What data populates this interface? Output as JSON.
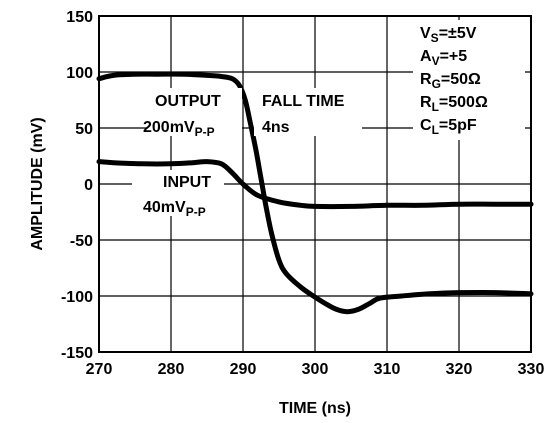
{
  "chart_data": {
    "type": "line",
    "xlabel": "TIME (ns)",
    "ylabel": "AMPLITUDE (mV)",
    "xlim": [
      270,
      330
    ],
    "ylim": [
      -150,
      150
    ],
    "x_ticks": [
      "270",
      "280",
      "290",
      "300",
      "310",
      "320",
      "330"
    ],
    "y_ticks": [
      "150",
      "100",
      "50",
      "0",
      "-50",
      "-100",
      "-150"
    ],
    "grid": true,
    "series": [
      {
        "id": "output",
        "x": [
          270,
          272,
          275,
          278,
          282,
          285,
          287,
          288.5,
          289.5,
          290.3,
          291,
          291.8,
          292.5,
          293.2,
          294,
          295,
          296,
          298,
          300,
          301.5,
          303,
          304.5,
          306,
          307.5,
          309,
          312,
          316,
          320,
          325,
          330
        ],
        "values": [
          94,
          97,
          98,
          98,
          98,
          97,
          96,
          94,
          88,
          75,
          55,
          30,
          5,
          -20,
          -45,
          -68,
          -80,
          -92,
          -101,
          -107,
          -112,
          -114,
          -112,
          -107,
          -102,
          -100,
          -98,
          -97,
          -97,
          -98
        ]
      },
      {
        "id": "input",
        "x": [
          270,
          272,
          276,
          280,
          283,
          285,
          287,
          288.5,
          290,
          292,
          295,
          298,
          300,
          305,
          310,
          315,
          320,
          325,
          330
        ],
        "values": [
          20,
          19,
          18,
          18,
          19,
          20,
          18,
          10,
          0,
          -10,
          -16,
          -19,
          -20,
          -20,
          -19,
          -19,
          -18,
          -18,
          -18
        ]
      }
    ]
  },
  "annotations": {
    "output_label": "OUTPUT",
    "output_value": "200mV",
    "output_value_sub": "P-P",
    "input_label": "INPUT",
    "input_value": "40mV",
    "input_value_sub": "P-P",
    "fall_time_label": "FALL TIME",
    "fall_time_value": "4ns",
    "conditions": [
      {
        "main": "V",
        "sub": "S",
        "rest": "=±5V"
      },
      {
        "main": "A",
        "sub": "V",
        "rest": "=+5"
      },
      {
        "main": "R",
        "sub": "G",
        "rest": "=50Ω"
      },
      {
        "main": "R",
        "sub": "L",
        "rest": "=500Ω"
      },
      {
        "main": "C",
        "sub": "L",
        "rest": "=5pF"
      }
    ]
  }
}
